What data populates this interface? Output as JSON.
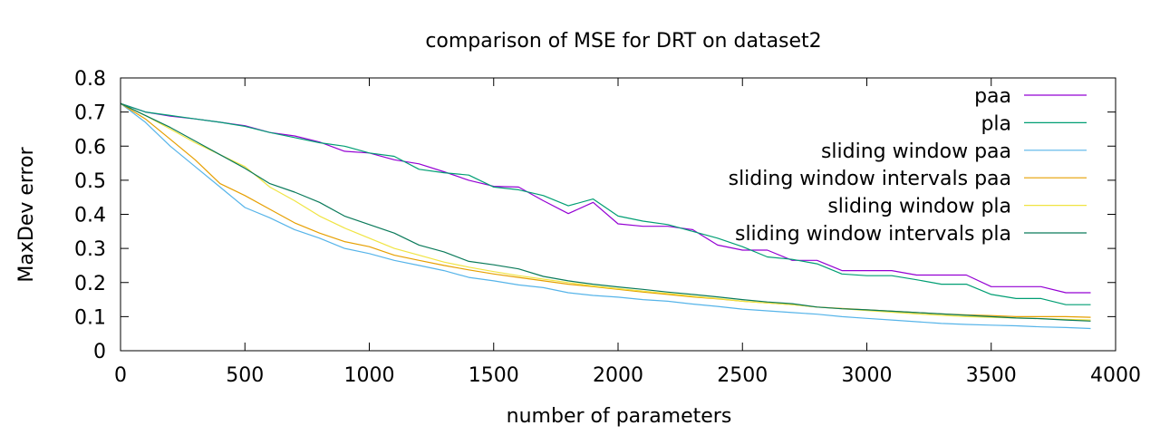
{
  "chart_data": {
    "type": "line",
    "title": "comparison of MSE for DRT on dataset2",
    "xlabel": "number of parameters",
    "ylabel": "MaxDev error",
    "xlim": [
      0,
      4000
    ],
    "ylim": [
      0,
      0.8
    ],
    "xticks": [
      0,
      500,
      1000,
      1500,
      2000,
      2500,
      3000,
      3500,
      4000
    ],
    "yticks": [
      0,
      0.1,
      0.2,
      0.3,
      0.4,
      0.5,
      0.6,
      0.7,
      0.8
    ],
    "grid": false,
    "legend_position": "top-right",
    "series": [
      {
        "name": "paa",
        "color": "#9400d3",
        "x": [
          0,
          100,
          200,
          300,
          400,
          500,
          600,
          700,
          800,
          900,
          1000,
          1100,
          1200,
          1300,
          1400,
          1500,
          1600,
          1700,
          1800,
          1900,
          2000,
          2100,
          2200,
          2300,
          2400,
          2500,
          2600,
          2700,
          2800,
          2900,
          3000,
          3100,
          3200,
          3300,
          3400,
          3500,
          3600,
          3700,
          3800,
          3900
        ],
        "y": [
          0.725,
          0.7,
          0.688,
          0.68,
          0.67,
          0.66,
          0.64,
          0.63,
          0.612,
          0.585,
          0.58,
          0.56,
          0.548,
          0.525,
          0.5,
          0.482,
          0.48,
          0.44,
          0.402,
          0.435,
          0.372,
          0.365,
          0.365,
          0.355,
          0.31,
          0.295,
          0.295,
          0.265,
          0.265,
          0.235,
          0.235,
          0.235,
          0.222,
          0.222,
          0.222,
          0.188,
          0.188,
          0.188,
          0.17,
          0.17
        ]
      },
      {
        "name": "pla",
        "color": "#009e73",
        "x": [
          0,
          100,
          200,
          300,
          400,
          500,
          600,
          700,
          800,
          900,
          1000,
          1100,
          1200,
          1300,
          1400,
          1500,
          1600,
          1700,
          1800,
          1900,
          2000,
          2100,
          2200,
          2300,
          2400,
          2500,
          2600,
          2700,
          2800,
          2900,
          3000,
          3100,
          3200,
          3300,
          3400,
          3500,
          3600,
          3700,
          3800,
          3900
        ],
        "y": [
          0.725,
          0.7,
          0.69,
          0.68,
          0.67,
          0.658,
          0.64,
          0.625,
          0.61,
          0.6,
          0.58,
          0.57,
          0.532,
          0.522,
          0.515,
          0.48,
          0.472,
          0.455,
          0.425,
          0.445,
          0.395,
          0.38,
          0.37,
          0.35,
          0.33,
          0.305,
          0.275,
          0.268,
          0.255,
          0.225,
          0.22,
          0.22,
          0.208,
          0.195,
          0.195,
          0.165,
          0.153,
          0.153,
          0.135,
          0.135
        ]
      },
      {
        "name": "sliding window paa",
        "color": "#56b4e9",
        "x": [
          0,
          100,
          200,
          300,
          400,
          500,
          600,
          700,
          800,
          900,
          1000,
          1100,
          1200,
          1300,
          1400,
          1500,
          1600,
          1700,
          1800,
          1900,
          2000,
          2100,
          2200,
          2300,
          2400,
          2500,
          2600,
          2700,
          2800,
          2900,
          3000,
          3100,
          3200,
          3300,
          3400,
          3500,
          3600,
          3700,
          3800,
          3900
        ],
        "y": [
          0.725,
          0.67,
          0.6,
          0.54,
          0.48,
          0.42,
          0.39,
          0.355,
          0.33,
          0.3,
          0.285,
          0.265,
          0.25,
          0.235,
          0.215,
          0.205,
          0.193,
          0.185,
          0.17,
          0.162,
          0.157,
          0.15,
          0.145,
          0.137,
          0.13,
          0.122,
          0.117,
          0.112,
          0.107,
          0.1,
          0.095,
          0.09,
          0.085,
          0.08,
          0.077,
          0.075,
          0.073,
          0.07,
          0.068,
          0.065
        ]
      },
      {
        "name": "sliding window intervals paa",
        "color": "#e69f00",
        "x": [
          0,
          100,
          200,
          300,
          400,
          500,
          600,
          700,
          800,
          900,
          1000,
          1100,
          1200,
          1300,
          1400,
          1500,
          1600,
          1700,
          1800,
          1900,
          2000,
          2100,
          2200,
          2300,
          2400,
          2500,
          2600,
          2700,
          2800,
          2900,
          3000,
          3100,
          3200,
          3300,
          3400,
          3500,
          3600,
          3700,
          3800,
          3900
        ],
        "y": [
          0.725,
          0.68,
          0.62,
          0.56,
          0.49,
          0.455,
          0.415,
          0.375,
          0.345,
          0.32,
          0.305,
          0.28,
          0.265,
          0.25,
          0.237,
          0.225,
          0.215,
          0.205,
          0.195,
          0.188,
          0.18,
          0.172,
          0.165,
          0.158,
          0.152,
          0.145,
          0.14,
          0.135,
          0.128,
          0.124,
          0.12,
          0.116,
          0.112,
          0.108,
          0.105,
          0.103,
          0.1,
          0.1,
          0.1,
          0.098
        ]
      },
      {
        "name": "sliding window pla",
        "color": "#f0e442",
        "x": [
          0,
          100,
          200,
          300,
          400,
          500,
          600,
          700,
          800,
          900,
          1000,
          1100,
          1200,
          1300,
          1400,
          1500,
          1600,
          1700,
          1800,
          1900,
          2000,
          2100,
          2200,
          2300,
          2400,
          2500,
          2600,
          2700,
          2800,
          2900,
          3000,
          3100,
          3200,
          3300,
          3400,
          3500,
          3600,
          3700,
          3800,
          3900
        ],
        "y": [
          0.725,
          0.69,
          0.65,
          0.61,
          0.575,
          0.54,
          0.48,
          0.44,
          0.395,
          0.36,
          0.33,
          0.3,
          0.28,
          0.26,
          0.245,
          0.232,
          0.22,
          0.21,
          0.2,
          0.19,
          0.182,
          0.175,
          0.168,
          0.16,
          0.153,
          0.145,
          0.14,
          0.135,
          0.128,
          0.123,
          0.118,
          0.113,
          0.108,
          0.104,
          0.1,
          0.098,
          0.096,
          0.094,
          0.092,
          0.09
        ]
      },
      {
        "name": "sliding window intervals pla",
        "color": "#0a7a5a",
        "x": [
          0,
          100,
          200,
          300,
          400,
          500,
          600,
          700,
          800,
          900,
          1000,
          1100,
          1200,
          1300,
          1400,
          1500,
          1600,
          1700,
          1800,
          1900,
          2000,
          2100,
          2200,
          2300,
          2400,
          2500,
          2600,
          2700,
          2800,
          2900,
          3000,
          3100,
          3200,
          3300,
          3400,
          3500,
          3600,
          3700,
          3800,
          3900
        ],
        "y": [
          0.725,
          0.69,
          0.655,
          0.615,
          0.575,
          0.535,
          0.49,
          0.465,
          0.435,
          0.395,
          0.37,
          0.345,
          0.31,
          0.29,
          0.262,
          0.252,
          0.24,
          0.218,
          0.205,
          0.195,
          0.187,
          0.18,
          0.172,
          0.165,
          0.158,
          0.15,
          0.143,
          0.138,
          0.128,
          0.123,
          0.12,
          0.116,
          0.112,
          0.108,
          0.104,
          0.1,
          0.096,
          0.094,
          0.09,
          0.087
        ]
      }
    ]
  }
}
